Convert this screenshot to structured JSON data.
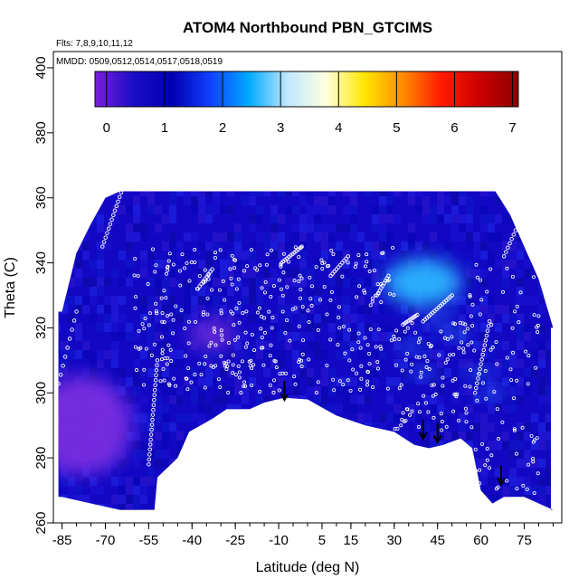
{
  "chart_data": {
    "type": "heatmap",
    "title": "ATOM4 Northbound PBN_GTCIMS",
    "annotations": [
      "Flts: 7,8,9,10,11,12",
      "MMDD: 0509,0512,0514,0517,0518,0519"
    ],
    "xlabel": "Latitude (deg N)",
    "ylabel": "Theta (C)",
    "xlim": [
      -88,
      88
    ],
    "ylim": [
      260,
      405
    ],
    "xticks": [
      -85,
      -70,
      -55,
      -40,
      -25,
      -10,
      5,
      15,
      30,
      45,
      60,
      75
    ],
    "xtick_labels": [
      "-85",
      "-70",
      "-55",
      "-40",
      "-25",
      "-10",
      "5",
      "15",
      "30",
      "45",
      "60",
      "75"
    ],
    "yticks": [
      260,
      280,
      300,
      320,
      340,
      360,
      380,
      400
    ],
    "ytick_labels": [
      "260",
      "280",
      "300",
      "320",
      "340",
      "360",
      "380",
      "400"
    ],
    "colorbar": {
      "range": [
        -0.2,
        7.1
      ],
      "ticks": [
        0,
        1,
        2,
        3,
        4,
        5,
        6,
        7
      ],
      "tick_labels": [
        "0",
        "1",
        "2",
        "3",
        "4",
        "5",
        "6",
        "7"
      ],
      "colors": [
        "#7b1fd8",
        "#1a0dc8",
        "#0000b0",
        "#1040ff",
        "#00aaff",
        "#bfe8ff",
        "#ffffe0",
        "#ffe600",
        "#ff8c00",
        "#ff1a00",
        "#cc0000",
        "#8b0000"
      ]
    },
    "top_boundary": [
      [
        -85,
        325
      ],
      [
        -80,
        343
      ],
      [
        -75,
        352
      ],
      [
        -70,
        360
      ],
      [
        -65,
        362
      ],
      [
        -20,
        362
      ],
      [
        -15,
        362
      ],
      [
        60,
        362
      ],
      [
        65,
        362
      ],
      [
        70,
        355
      ],
      [
        75,
        345
      ],
      [
        80,
        335
      ],
      [
        85,
        320
      ]
    ],
    "bottom_boundary": [
      [
        -85,
        268
      ],
      [
        -75,
        266
      ],
      [
        -65,
        264
      ],
      [
        -53,
        264
      ],
      [
        -52,
        274
      ],
      [
        -45,
        280
      ],
      [
        -41,
        288
      ],
      [
        -33,
        292
      ],
      [
        -28,
        295
      ],
      [
        -20,
        295
      ],
      [
        -15,
        297
      ],
      [
        -8,
        298.5
      ],
      [
        0,
        298
      ],
      [
        10,
        293
      ],
      [
        20,
        290
      ],
      [
        30,
        288
      ],
      [
        37,
        284
      ],
      [
        42,
        283
      ],
      [
        47,
        284
      ],
      [
        53,
        286
      ],
      [
        57,
        283
      ],
      [
        60,
        270
      ],
      [
        64,
        266
      ],
      [
        68,
        268
      ],
      [
        75,
        268
      ],
      [
        85,
        264
      ]
    ],
    "features": [
      {
        "name": "light-blue plume",
        "lat": 40,
        "theta": 334,
        "value": 2.8
      },
      {
        "name": "violet patch",
        "lat": -78,
        "theta": 290,
        "value": 0.3
      },
      {
        "name": "violet patch",
        "lat": -33,
        "theta": 318,
        "value": 0.5
      }
    ],
    "arrows": [
      {
        "lat": -8,
        "theta": 302
      },
      {
        "lat": 40,
        "theta": 290
      },
      {
        "lat": 45,
        "theta": 289
      },
      {
        "lat": 67,
        "theta": 276
      }
    ],
    "sample_tracks": [
      {
        "kind": "profile",
        "lat0": -71,
        "lat1": -64,
        "theta0": 345,
        "theta1": 363,
        "n": 14
      },
      {
        "kind": "profile",
        "lat0": -55,
        "lat1": -52,
        "theta0": 278,
        "theta1": 310,
        "n": 22
      },
      {
        "kind": "profile",
        "lat0": -38,
        "lat1": -33,
        "theta0": 332,
        "theta1": 338,
        "n": 9
      },
      {
        "kind": "profile",
        "lat0": -9,
        "lat1": -2,
        "theta0": 340,
        "theta1": 345,
        "n": 12
      },
      {
        "kind": "profile",
        "lat0": 8,
        "lat1": 14,
        "theta0": 336,
        "theta1": 342,
        "n": 10
      },
      {
        "kind": "profile",
        "lat0": 24,
        "lat1": 28,
        "theta0": 330,
        "theta1": 336,
        "n": 9
      },
      {
        "kind": "profile",
        "lat0": 33,
        "lat1": 38,
        "theta0": 321,
        "theta1": 324,
        "n": 10
      },
      {
        "kind": "profile",
        "lat0": 40,
        "lat1": 50,
        "theta0": 322,
        "theta1": 330,
        "n": 16
      },
      {
        "kind": "profile",
        "lat0": 58,
        "lat1": 63,
        "theta0": 300,
        "theta1": 322,
        "n": 16
      },
      {
        "kind": "profile",
        "lat0": 68,
        "lat1": 78,
        "theta0": 342,
        "theta1": 362,
        "n": 16
      },
      {
        "kind": "profile",
        "lat0": -87,
        "lat1": -80,
        "theta0": 300,
        "theta1": 325,
        "n": 10
      }
    ]
  }
}
